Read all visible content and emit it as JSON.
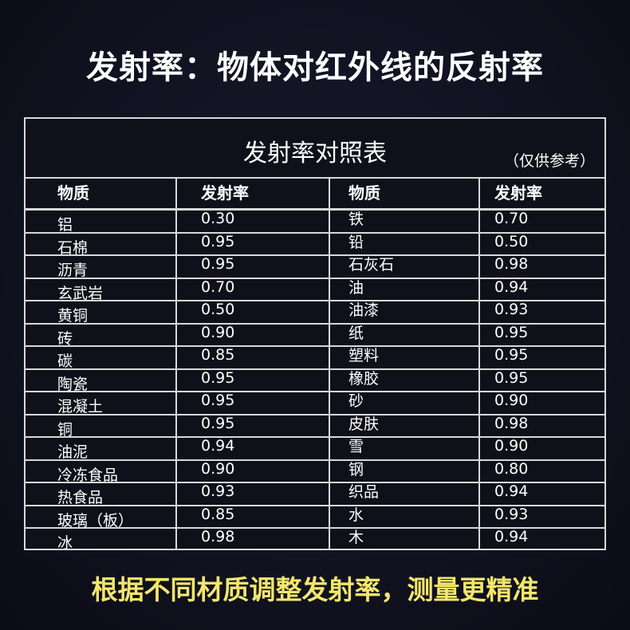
{
  "headline": "发射率：物体对红外线的反射率",
  "table": {
    "title": "发射率对照表",
    "note": "（仅供参考）",
    "headers": [
      "物质",
      "发射率",
      "物质",
      "发射率"
    ],
    "rows": [
      [
        "铝",
        "0.30",
        "铁",
        "0.70"
      ],
      [
        "石棉",
        "0.95",
        "铅",
        "0.50"
      ],
      [
        "沥青",
        "0.95",
        "石灰石",
        "0.98"
      ],
      [
        "玄武岩",
        "0.70",
        "油",
        "0.94"
      ],
      [
        "黄铜",
        "0.50",
        "油漆",
        "0.93"
      ],
      [
        "砖",
        "0.90",
        "纸",
        "0.95"
      ],
      [
        "碳",
        "0.85",
        "塑料",
        "0.95"
      ],
      [
        "陶瓷",
        "0.95",
        "橡胶",
        "0.95"
      ],
      [
        "混凝土",
        "0.95",
        "砂",
        "0.90"
      ],
      [
        "铜",
        "0.95",
        "皮肤",
        "0.98"
      ],
      [
        "油泥",
        "0.94",
        "雪",
        "0.90"
      ],
      [
        "冷冻食品",
        "0.90",
        "钢",
        "0.80"
      ],
      [
        " 热食品",
        "0.93",
        "织品",
        "0.94"
      ],
      [
        "玻璃（板）",
        "0.85",
        "水",
        "0.93"
      ],
      [
        "冰",
        "0.98",
        "木",
        "0.94"
      ]
    ]
  },
  "footer": "根据不同材质调整发射率，测量更精准",
  "colors": {
    "background": "#101220",
    "footer_text": "#f4e66c",
    "grid": "#d8d8d8"
  }
}
